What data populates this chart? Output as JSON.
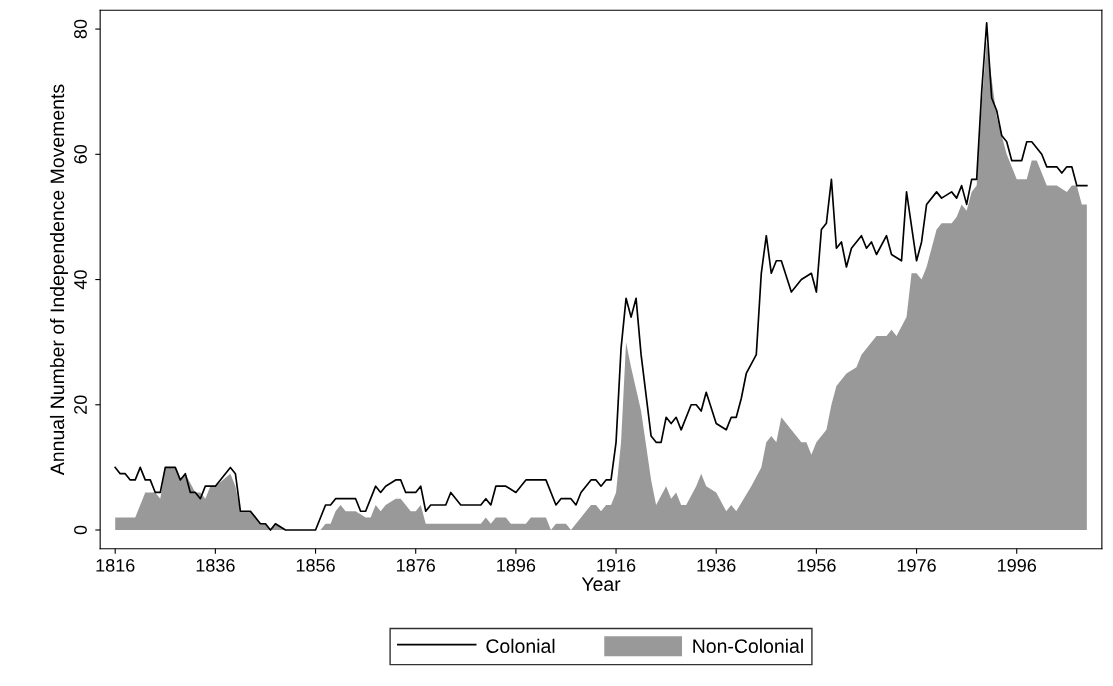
{
  "chart_data": {
    "type": "line",
    "xlabel": "Year",
    "ylabel": "Annual Number of Independence Movements",
    "xlim": [
      1813,
      2013
    ],
    "xticks": [
      1816,
      1836,
      1856,
      1876,
      1896,
      1916,
      1936,
      1956,
      1976,
      1996
    ],
    "ylim": [
      -3,
      83
    ],
    "yticks": [
      0,
      20,
      40,
      60,
      80
    ],
    "grid": false,
    "legend": "bottom",
    "series": [
      {
        "name": "Colonial",
        "color": "#000000",
        "x": [
          1816,
          1817,
          1818,
          1819,
          1820,
          1821,
          1822,
          1823,
          1824,
          1825,
          1826,
          1828,
          1829,
          1830,
          1831,
          1832,
          1833,
          1834,
          1835,
          1836,
          1839,
          1840,
          1841,
          1843,
          1845,
          1846,
          1847,
          1848,
          1850,
          1856,
          1857,
          1858,
          1859,
          1860,
          1861,
          1864,
          1865,
          1866,
          1868,
          1869,
          1870,
          1872,
          1873,
          1874,
          1876,
          1877,
          1878,
          1879,
          1882,
          1883,
          1884,
          1885,
          1886,
          1889,
          1890,
          1891,
          1892,
          1894,
          1896,
          1897,
          1898,
          1899,
          1902,
          1904,
          1905,
          1907,
          1908,
          1909,
          1911,
          1912,
          1913,
          1914,
          1915,
          1916,
          1917,
          1918,
          1919,
          1920,
          1921,
          1923,
          1924,
          1925,
          1926,
          1927,
          1928,
          1929,
          1931,
          1932,
          1933,
          1934,
          1936,
          1938,
          1939,
          1940,
          1941,
          1942,
          1944,
          1945,
          1946,
          1947,
          1948,
          1949,
          1951,
          1953,
          1955,
          1956,
          1957,
          1958,
          1959,
          1960,
          1961,
          1962,
          1963,
          1965,
          1966,
          1967,
          1968,
          1970,
          1971,
          1973,
          1974,
          1976,
          1977,
          1978,
          1980,
          1981,
          1983,
          1984,
          1985,
          1986,
          1987,
          1988,
          1989,
          1990,
          1991,
          1992,
          1993,
          1994,
          1995,
          1997,
          1998,
          1999,
          2001,
          2002,
          2004,
          2005,
          2006,
          2007,
          2008,
          2010
        ],
        "values": [
          10,
          9,
          9,
          8,
          8,
          10,
          8,
          8,
          6,
          6,
          10,
          10,
          8,
          9,
          6,
          6,
          5,
          7,
          7,
          7,
          10,
          9,
          3,
          3,
          1,
          1,
          0,
          1,
          0,
          0,
          2,
          4,
          4,
          5,
          5,
          5,
          3,
          3,
          7,
          6,
          7,
          8,
          8,
          6,
          6,
          7,
          3,
          4,
          4,
          6,
          5,
          4,
          4,
          4,
          5,
          4,
          7,
          7,
          6,
          7,
          8,
          8,
          8,
          4,
          5,
          5,
          4,
          6,
          8,
          8,
          7,
          8,
          8,
          14,
          29,
          37,
          34,
          37,
          28,
          15,
          14,
          14,
          18,
          17,
          18,
          16,
          20,
          20,
          19,
          22,
          17,
          16,
          18,
          18,
          21,
          25,
          28,
          41,
          47,
          41,
          43,
          43,
          38,
          40,
          41,
          38,
          48,
          49,
          56,
          45,
          46,
          42,
          45,
          47,
          45,
          46,
          44,
          47,
          44,
          43,
          54,
          43,
          46,
          52,
          54,
          53,
          54,
          53,
          55,
          52,
          56,
          56,
          70,
          81,
          69,
          67,
          63,
          62,
          59,
          59,
          62,
          62,
          60,
          58,
          58,
          57,
          58,
          58,
          55,
          55
        ]
      },
      {
        "name": "Non-Colonial",
        "type": "area",
        "color": "#999999",
        "x": [
          1816,
          1820,
          1822,
          1824,
          1825,
          1826,
          1828,
          1829,
          1830,
          1832,
          1833,
          1834,
          1835,
          1836,
          1839,
          1840,
          1841,
          1843,
          1845,
          1846,
          1847,
          1848,
          1850,
          1857,
          1858,
          1859,
          1860,
          1861,
          1862,
          1864,
          1866,
          1867,
          1868,
          1869,
          1870,
          1872,
          1873,
          1875,
          1876,
          1877,
          1878,
          1889,
          1890,
          1891,
          1892,
          1894,
          1895,
          1898,
          1899,
          1902,
          1903,
          1904,
          1906,
          1907,
          1909,
          1911,
          1912,
          1913,
          1914,
          1915,
          1916,
          1917,
          1918,
          1919,
          1921,
          1923,
          1924,
          1926,
          1927,
          1928,
          1929,
          1930,
          1932,
          1933,
          1934,
          1936,
          1938,
          1939,
          1940,
          1943,
          1945,
          1946,
          1947,
          1948,
          1949,
          1951,
          1953,
          1954,
          1955,
          1956,
          1958,
          1959,
          1960,
          1962,
          1964,
          1965,
          1968,
          1970,
          1971,
          1972,
          1974,
          1975,
          1976,
          1977,
          1978,
          1979,
          1980,
          1981,
          1983,
          1984,
          1985,
          1986,
          1987,
          1988,
          1989,
          1990,
          1992,
          1993,
          1994,
          1996,
          1998,
          1999,
          2000,
          2001,
          2002,
          2004,
          2006,
          2007,
          2008,
          2009,
          2010
        ],
        "values": [
          2,
          2,
          6,
          6,
          5,
          10,
          10,
          8,
          9,
          6,
          6,
          5,
          7,
          7,
          9,
          7,
          3,
          3,
          1,
          1,
          0,
          1,
          0,
          0,
          1,
          1,
          3,
          4,
          3,
          3,
          2,
          2,
          4,
          3,
          4,
          5,
          5,
          3,
          3,
          4,
          1,
          1,
          2,
          1,
          2,
          2,
          1,
          1,
          2,
          2,
          0,
          1,
          1,
          0,
          2,
          4,
          4,
          3,
          4,
          4,
          6,
          14,
          30,
          26,
          19,
          8,
          4,
          7,
          5,
          6,
          4,
          4,
          7,
          9,
          7,
          6,
          3,
          4,
          3,
          7,
          10,
          14,
          15,
          14,
          18,
          16,
          14,
          14,
          12,
          14,
          16,
          20,
          23,
          25,
          26,
          28,
          31,
          31,
          32,
          31,
          34,
          41,
          41,
          40,
          42,
          45,
          48,
          49,
          49,
          50,
          52,
          51,
          54,
          55,
          68,
          78,
          66,
          63,
          60,
          56,
          56,
          59,
          59,
          57,
          55,
          55,
          54,
          55,
          55,
          52,
          52
        ]
      }
    ]
  }
}
